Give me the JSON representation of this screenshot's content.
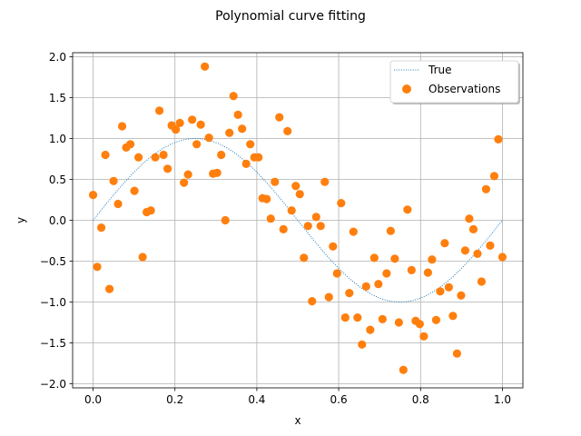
{
  "chart_data": {
    "type": "scatter",
    "title": "Polynomial curve fitting",
    "xlabel": "x",
    "ylabel": "y",
    "xlim": [
      -0.05,
      1.05
    ],
    "ylim": [
      -2.05,
      2.05
    ],
    "xticks": [
      0.0,
      0.2,
      0.4,
      0.6,
      0.8,
      1.0
    ],
    "xtick_labels": [
      "0.0",
      "0.2",
      "0.4",
      "0.6",
      "0.8",
      "1.0"
    ],
    "yticks": [
      -2.0,
      -1.5,
      -1.0,
      -0.5,
      0.0,
      0.5,
      1.0,
      1.5,
      2.0
    ],
    "ytick_labels": [
      "−2.0",
      "−1.5",
      "−1.0",
      "−0.5",
      "0.0",
      "0.5",
      "1.0",
      "1.5",
      "2.0"
    ],
    "grid": true,
    "legend_position": "top-right",
    "series": [
      {
        "name": "True",
        "kind": "line",
        "style": "dotted",
        "color": "#1f77b4",
        "function": "sin(2*pi*x)",
        "x_range": [
          0.0,
          1.0
        ]
      },
      {
        "name": "Observations",
        "kind": "scatter",
        "color": "#ff7f0e",
        "points": [
          [
            0.0,
            0.31
          ],
          [
            0.01,
            -0.57
          ],
          [
            0.02,
            -0.09
          ],
          [
            0.03,
            0.8
          ],
          [
            0.04,
            -0.84
          ],
          [
            0.05,
            0.48
          ],
          [
            0.061,
            0.2
          ],
          [
            0.071,
            1.15
          ],
          [
            0.081,
            0.89
          ],
          [
            0.091,
            0.93
          ],
          [
            0.101,
            0.36
          ],
          [
            0.111,
            0.77
          ],
          [
            0.121,
            -0.45
          ],
          [
            0.131,
            0.1
          ],
          [
            0.141,
            0.12
          ],
          [
            0.152,
            0.77
          ],
          [
            0.162,
            1.34
          ],
          [
            0.172,
            0.8
          ],
          [
            0.182,
            0.63
          ],
          [
            0.192,
            1.16
          ],
          [
            0.202,
            1.11
          ],
          [
            0.212,
            1.19
          ],
          [
            0.222,
            0.46
          ],
          [
            0.232,
            0.56
          ],
          [
            0.242,
            1.23
          ],
          [
            0.253,
            0.93
          ],
          [
            0.263,
            1.17
          ],
          [
            0.273,
            1.88
          ],
          [
            0.283,
            1.01
          ],
          [
            0.293,
            0.57
          ],
          [
            0.303,
            0.58
          ],
          [
            0.313,
            0.8
          ],
          [
            0.323,
            0.0
          ],
          [
            0.333,
            1.07
          ],
          [
            0.343,
            1.52
          ],
          [
            0.354,
            1.29
          ],
          [
            0.364,
            1.12
          ],
          [
            0.374,
            0.69
          ],
          [
            0.384,
            0.93
          ],
          [
            0.394,
            0.77
          ],
          [
            0.404,
            0.77
          ],
          [
            0.414,
            0.27
          ],
          [
            0.424,
            0.26
          ],
          [
            0.434,
            0.02
          ],
          [
            0.444,
            0.47
          ],
          [
            0.455,
            1.26
          ],
          [
            0.465,
            -0.11
          ],
          [
            0.475,
            1.09
          ],
          [
            0.485,
            0.12
          ],
          [
            0.495,
            0.42
          ],
          [
            0.505,
            0.32
          ],
          [
            0.515,
            -0.46
          ],
          [
            0.525,
            -0.07
          ],
          [
            0.535,
            -0.99
          ],
          [
            0.545,
            0.04
          ],
          [
            0.556,
            -0.07
          ],
          [
            0.566,
            0.47
          ],
          [
            0.576,
            -0.94
          ],
          [
            0.586,
            -0.32
          ],
          [
            0.596,
            -0.65
          ],
          [
            0.606,
            0.21
          ],
          [
            0.616,
            -1.19
          ],
          [
            0.626,
            -0.89
          ],
          [
            0.636,
            -0.14
          ],
          [
            0.646,
            -1.19
          ],
          [
            0.657,
            -1.52
          ],
          [
            0.667,
            -0.81
          ],
          [
            0.677,
            -1.34
          ],
          [
            0.687,
            -0.46
          ],
          [
            0.697,
            -0.78
          ],
          [
            0.707,
            -1.21
          ],
          [
            0.717,
            -0.65
          ],
          [
            0.727,
            -0.13
          ],
          [
            0.737,
            -0.47
          ],
          [
            0.747,
            -1.25
          ],
          [
            0.758,
            -1.83
          ],
          [
            0.768,
            0.13
          ],
          [
            0.778,
            -0.61
          ],
          [
            0.788,
            -1.23
          ],
          [
            0.798,
            -1.27
          ],
          [
            0.808,
            -1.42
          ],
          [
            0.818,
            -0.64
          ],
          [
            0.828,
            -0.48
          ],
          [
            0.838,
            -1.22
          ],
          [
            0.848,
            -0.87
          ],
          [
            0.859,
            -0.28
          ],
          [
            0.869,
            -0.82
          ],
          [
            0.879,
            -1.17
          ],
          [
            0.889,
            -1.63
          ],
          [
            0.899,
            -0.92
          ],
          [
            0.909,
            -0.37
          ],
          [
            0.919,
            0.02
          ],
          [
            0.929,
            -0.11
          ],
          [
            0.939,
            -0.41
          ],
          [
            0.949,
            -0.75
          ],
          [
            0.96,
            0.38
          ],
          [
            0.97,
            -0.31
          ],
          [
            0.98,
            0.54
          ],
          [
            0.99,
            0.99
          ],
          [
            1.0,
            -0.45
          ]
        ]
      }
    ]
  }
}
